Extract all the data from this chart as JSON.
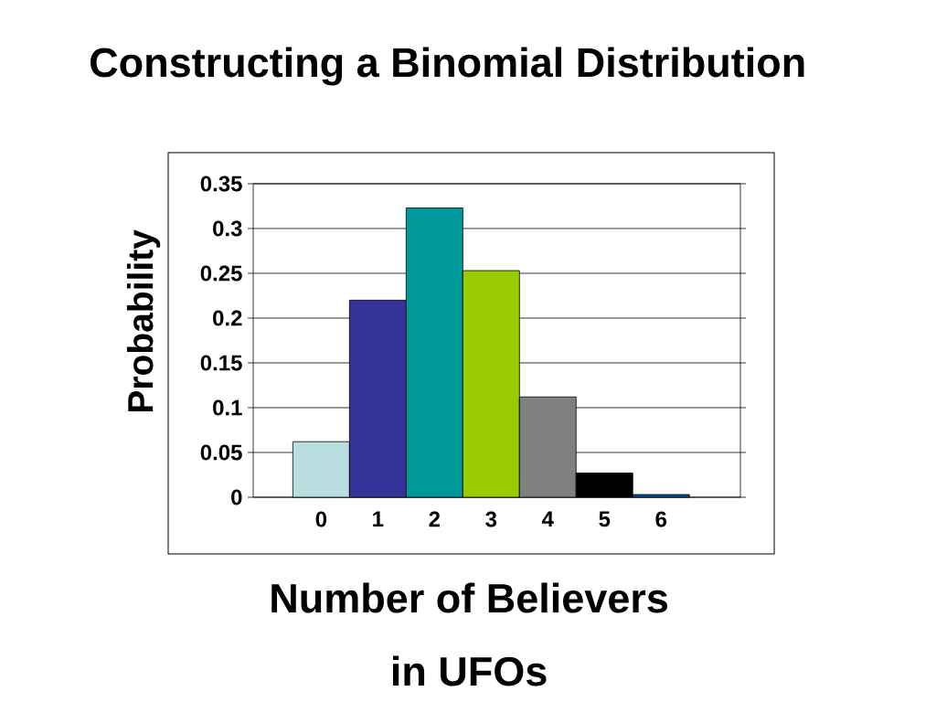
{
  "chart_data": {
    "type": "bar",
    "title": "Constructing a Binomial Distribution",
    "xlabel": "Number of Believers in UFOs",
    "ylabel": "Probability",
    "categories": [
      "0",
      "1",
      "2",
      "3",
      "4",
      "5",
      "6"
    ],
    "values": [
      0.062,
      0.22,
      0.323,
      0.253,
      0.112,
      0.027,
      0.003
    ],
    "colors": [
      "#b8dee0",
      "#333399",
      "#009999",
      "#99cc00",
      "#808080",
      "#000000",
      "#0050a0"
    ],
    "ylim": [
      0,
      0.35
    ],
    "yticks": [
      0,
      0.05,
      0.1,
      0.15,
      0.2,
      0.25,
      0.3,
      0.35
    ],
    "grid": "y"
  }
}
